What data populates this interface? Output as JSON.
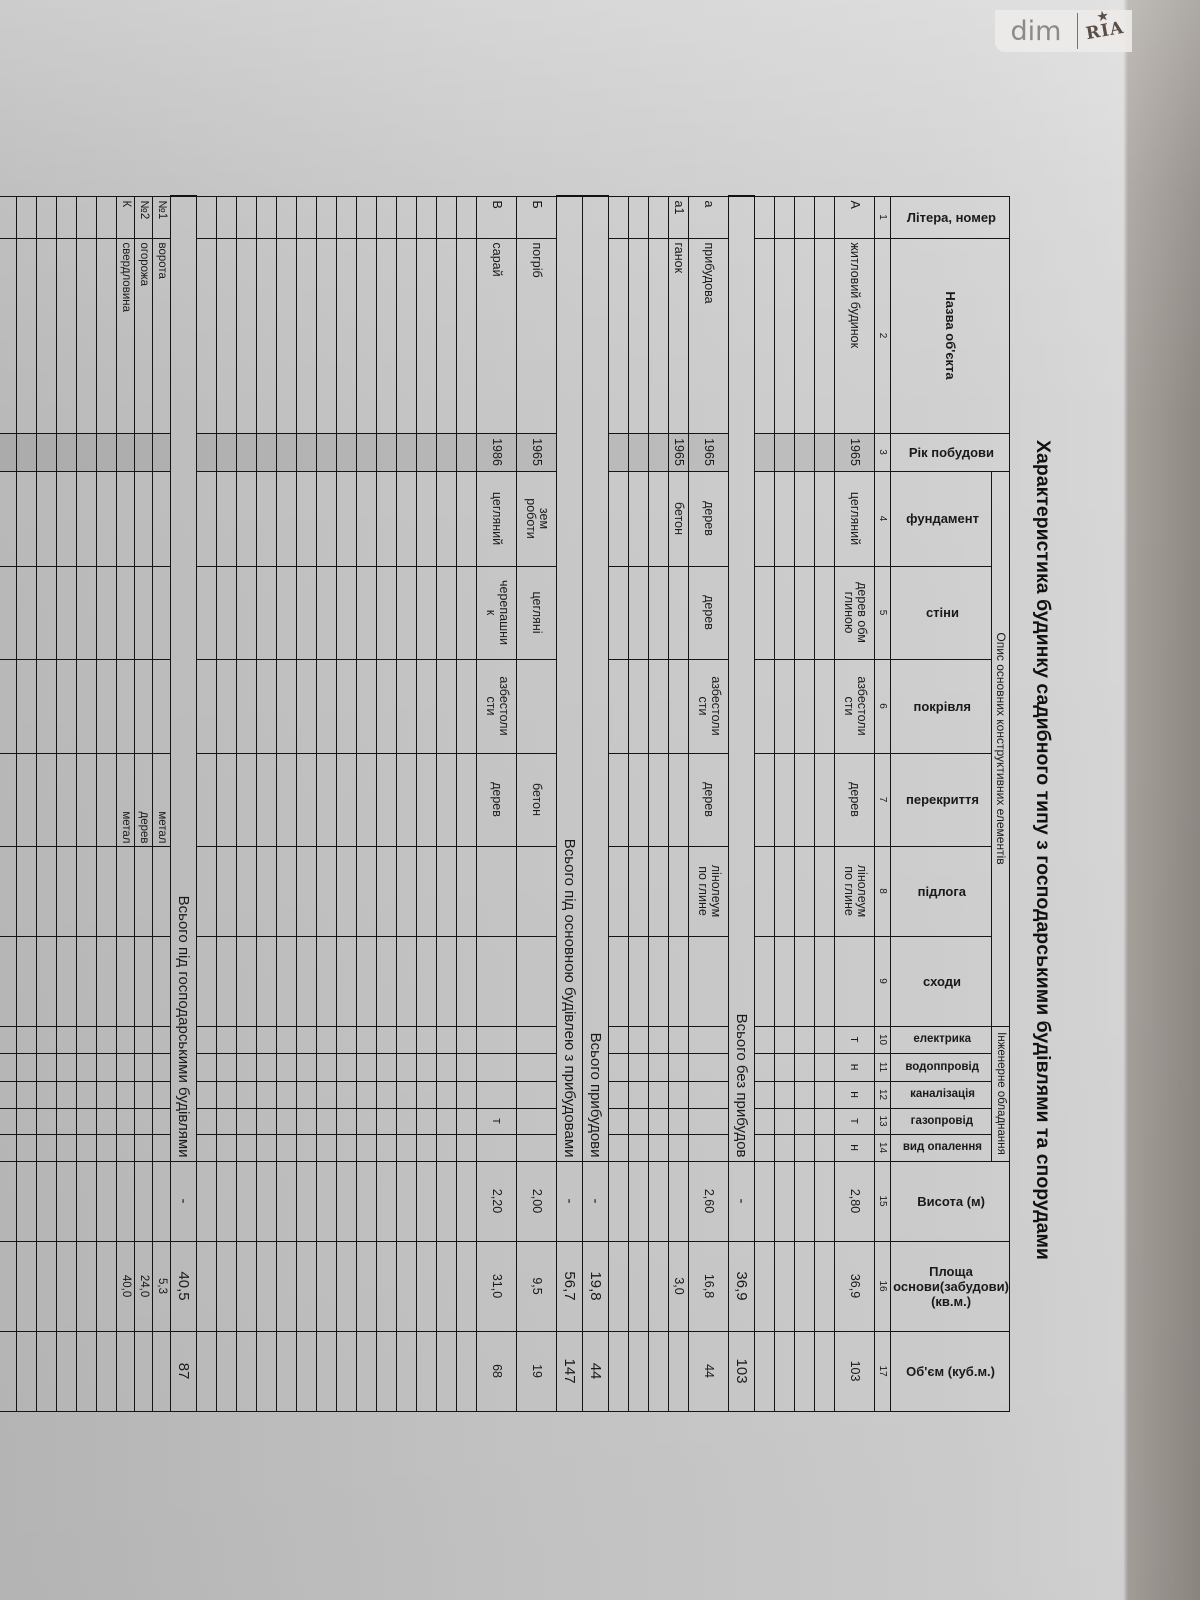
{
  "watermark": {
    "brand": "dim",
    "mark": "RIA"
  },
  "title": "Характеристика будинку садибного типу з господарськими будівлями та спорудами",
  "header": {
    "group_construction": "Опис основних конструктивних елементів",
    "group_engineering": "Інженерне обладнання",
    "columns": [
      "Літера, номер",
      "Назва об'єкта",
      "Рік побудови",
      "фундамент",
      "стіни",
      "покрівля",
      "перекриття",
      "підлога",
      "сходи",
      "електрика",
      "водоппровід",
      "каналізація",
      "газопровід",
      "вид опалення",
      "Висота (м)",
      "Площа\nоснови(забудови)\n(кв.м.)",
      "Об'єм (куб.м.)"
    ],
    "numbers": [
      "1",
      "2",
      "3",
      "4",
      "5",
      "6",
      "7",
      "8",
      "9",
      "10",
      "11",
      "12",
      "13",
      "14",
      "15",
      "16",
      "17"
    ]
  },
  "rows": [
    {
      "cells": [
        "А",
        "житловий будинок",
        "1965",
        "цегляний",
        "дерев обм\nглиною",
        "азбестоли\nсти",
        "дерев",
        "лінолеум\nпо глине",
        "",
        "т",
        "н",
        "н",
        "т",
        "н",
        "2,80",
        "36,9",
        "103"
      ]
    },
    {
      "cells": []
    },
    {
      "cells": []
    },
    {
      "cells": []
    },
    {
      "cells": []
    },
    {
      "total": "Всього без прибудов",
      "height": "-",
      "area": "36,9",
      "volume": "103"
    },
    {
      "cells": [
        "а",
        "прибудова",
        "1965",
        "дерев",
        "дерев",
        "азбестоли\nсти",
        "дерев",
        "лінолеум\nпо глине",
        "",
        "",
        "",
        "",
        "",
        "",
        "2,60",
        "16,8",
        "44"
      ]
    },
    {
      "cells": [
        "а1",
        "ганок",
        "1965",
        "бетон",
        "",
        "",
        "",
        "",
        "",
        "",
        "",
        "",
        "",
        "",
        "",
        "3,0",
        ""
      ]
    },
    {
      "cells": []
    },
    {
      "cells": []
    },
    {
      "cells": []
    },
    {
      "total": "Всього прибудови",
      "height": "-",
      "area": "19,8",
      "volume": "44"
    },
    {
      "total": "Всього під основною будівлею з прибудовами",
      "height": "-",
      "area": "56,7",
      "volume": "147"
    },
    {
      "cells": [
        "Б",
        "погріб",
        "1965",
        "зем\nроботи",
        "цегляні",
        "",
        "бетон",
        "",
        "",
        "",
        "",
        "",
        "",
        "",
        "2,00",
        "9,5",
        "19"
      ]
    },
    {
      "cells": [
        "В",
        "сарай",
        "1986",
        "цегляний",
        "черепашни\nк",
        "азбестоли\nсти",
        "дерев",
        "",
        "",
        "",
        "",
        "",
        "т",
        "",
        "2,20",
        "31,0",
        "68"
      ]
    },
    {
      "cells": []
    },
    {
      "cells": []
    },
    {
      "cells": []
    },
    {
      "cells": []
    },
    {
      "cells": []
    },
    {
      "cells": []
    },
    {
      "cells": []
    },
    {
      "cells": []
    },
    {
      "cells": []
    },
    {
      "cells": []
    },
    {
      "cells": []
    },
    {
      "cells": []
    },
    {
      "cells": []
    },
    {
      "cells": []
    },
    {
      "total": "Всього під господарськими будівлями",
      "height": "-",
      "area": "40,5",
      "volume": "87"
    },
    {
      "cells": [
        "№1",
        "ворота",
        "",
        "",
        "",
        "",
        "метал",
        "",
        "",
        "",
        "",
        "",
        "",
        "",
        "",
        "5,3",
        ""
      ],
      "small": true
    },
    {
      "cells": [
        "№2",
        "огорожа",
        "",
        "",
        "",
        "",
        "дерев",
        "",
        "",
        "",
        "",
        "",
        "",
        "",
        "",
        "24,0",
        ""
      ],
      "small": true
    },
    {
      "cells": [
        "К",
        "свердловина",
        "",
        "",
        "",
        "",
        "метал",
        "",
        "",
        "",
        "",
        "",
        "",
        "",
        "",
        "40,0",
        ""
      ],
      "small": true
    },
    {
      "cells": []
    },
    {
      "cells": []
    },
    {
      "cells": []
    },
    {
      "cells": []
    },
    {
      "cells": []
    },
    {
      "cells": []
    },
    {
      "cells": []
    }
  ]
}
